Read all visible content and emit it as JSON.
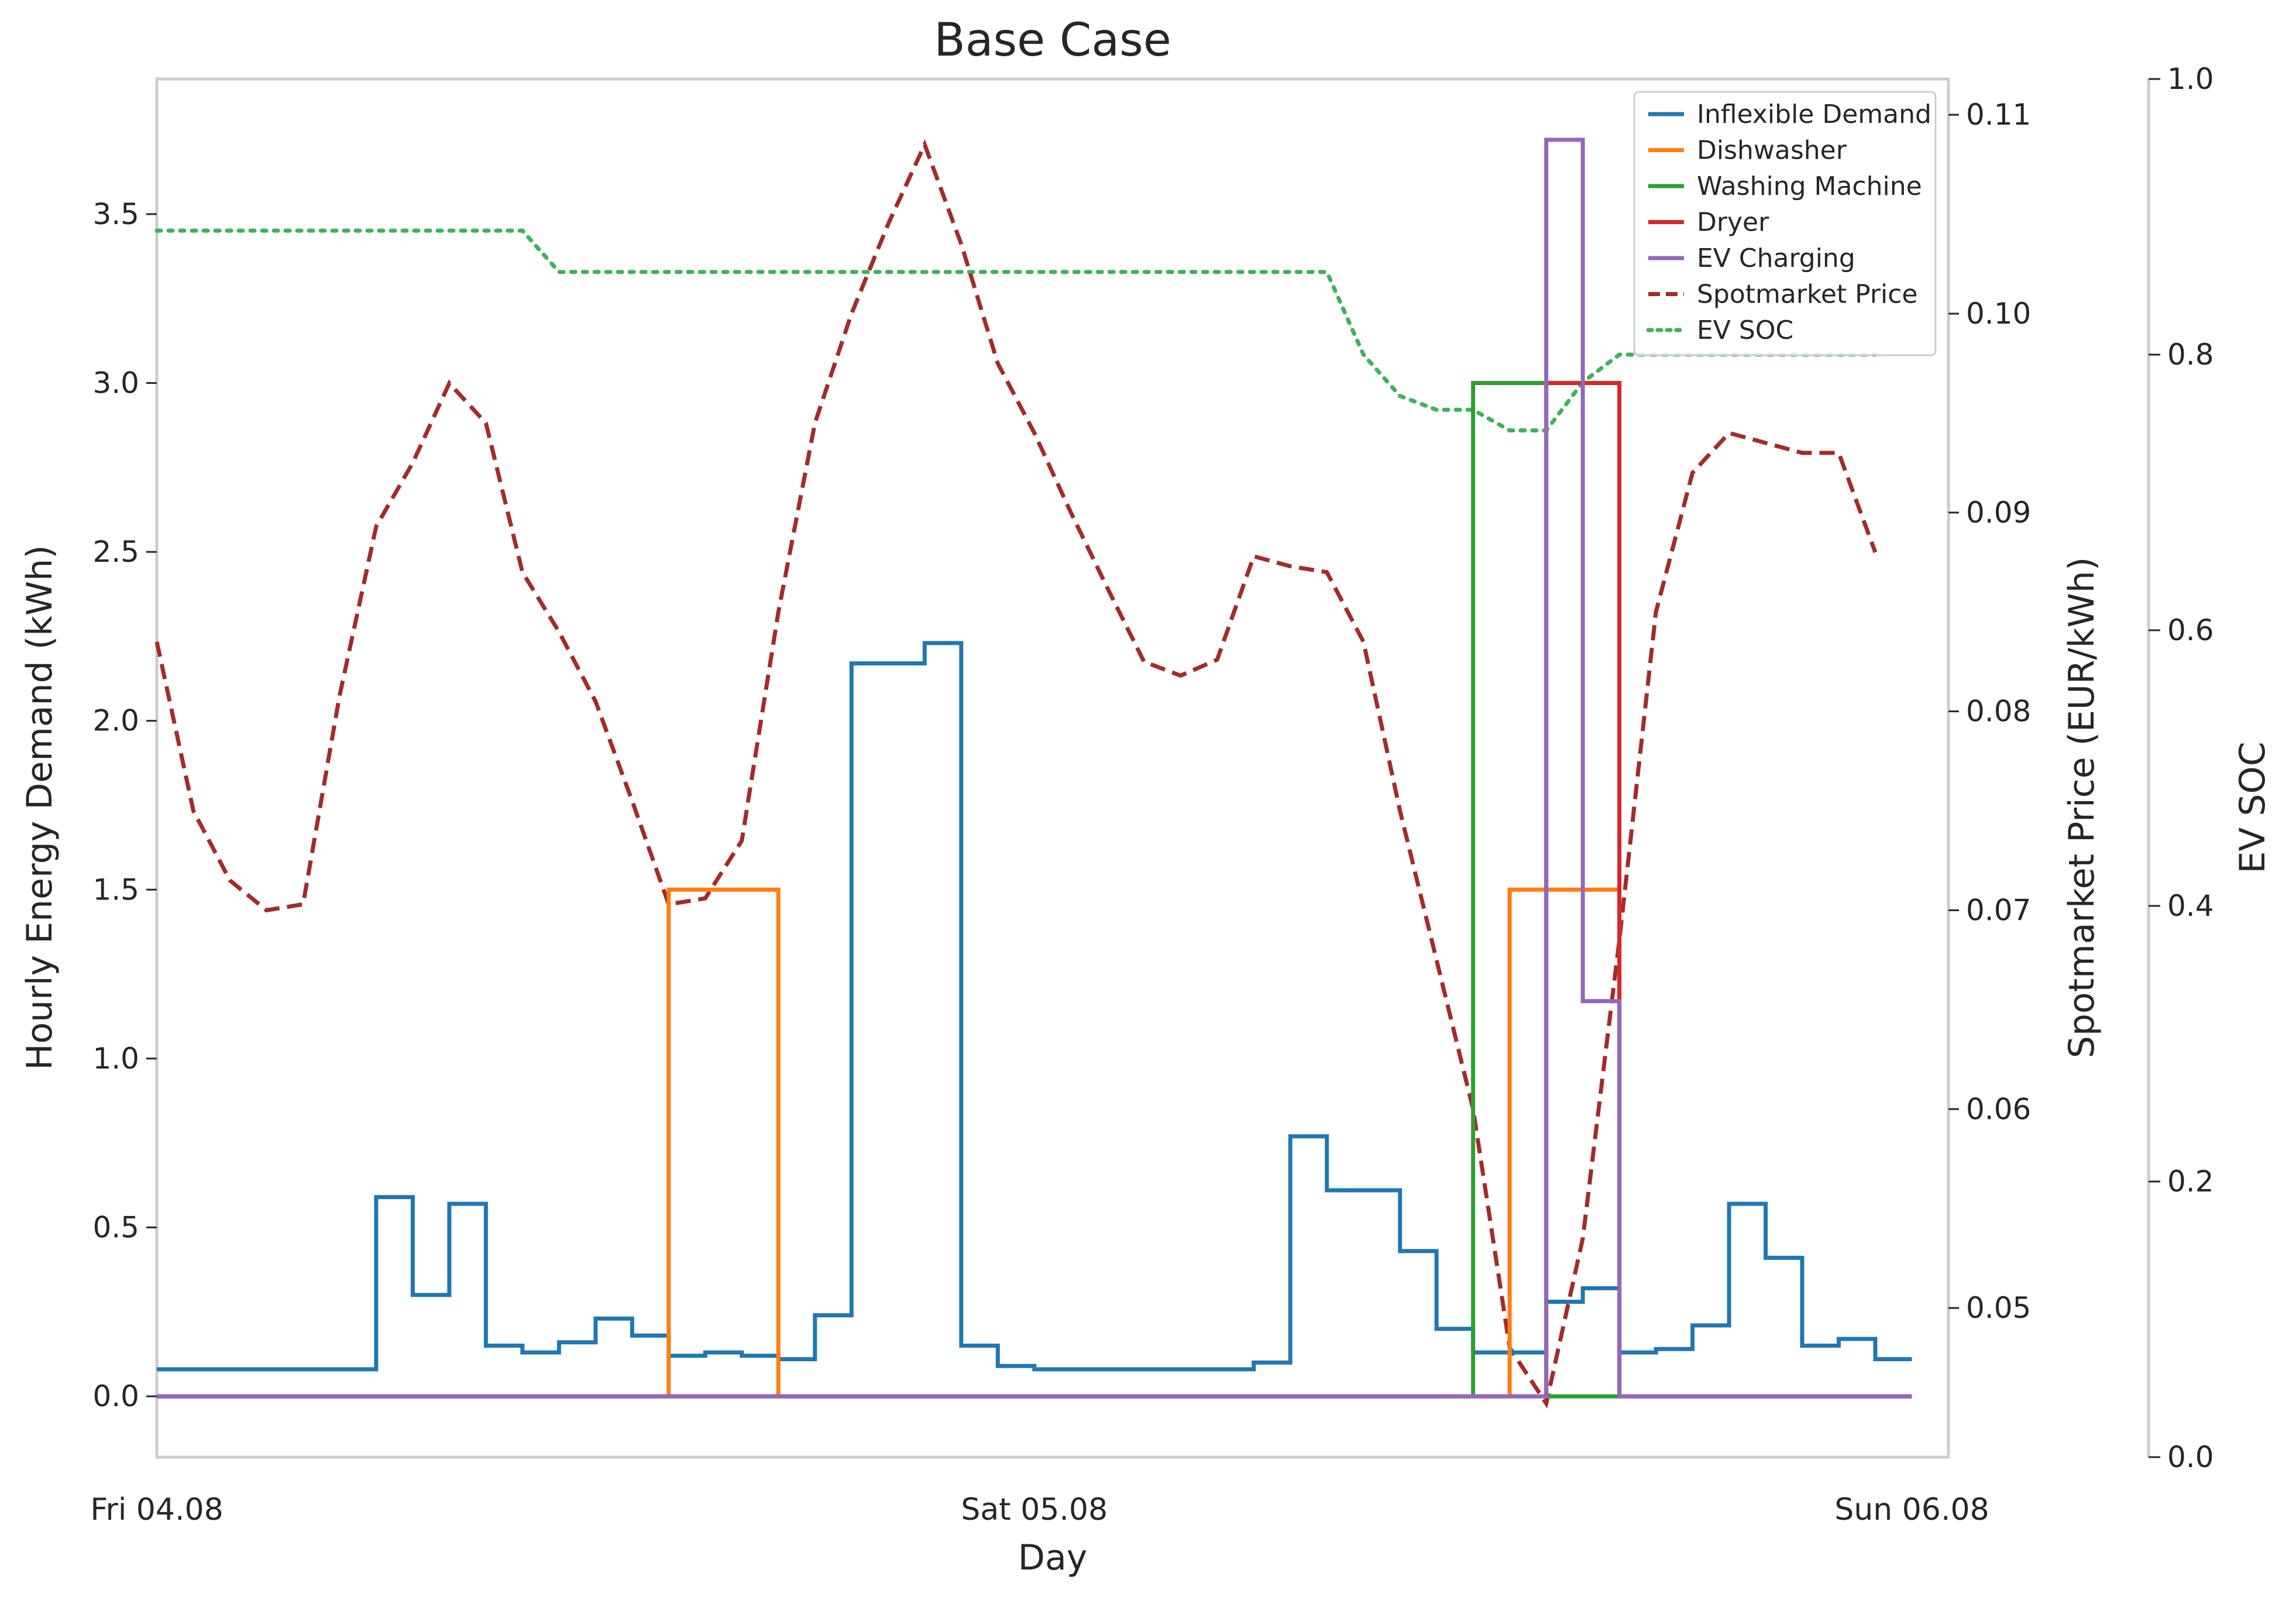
{
  "chart_data": {
    "type": "line",
    "title": "Base Case",
    "xlabel": "Day",
    "ylabel": "Hourly Energy Demand (kWh)",
    "y2label": "Spotmarket Price (EUR/kWh)",
    "y3label": "EV SOC",
    "x_ticks": [
      {
        "hour": 0,
        "label": "Fri 04.08"
      },
      {
        "hour": 24,
        "label": "Sat 05.08"
      },
      {
        "hour": 48,
        "label": "Sun 06.08"
      }
    ],
    "x_range_hours": [
      0,
      49
    ],
    "ylim": [
      -0.18,
      3.9
    ],
    "y_ticks": [
      0.0,
      0.5,
      1.0,
      1.5,
      2.0,
      2.5,
      3.0,
      3.5
    ],
    "y2lim": [
      0.0425,
      0.1118
    ],
    "y2_ticks": [
      0.05,
      0.06,
      0.07,
      0.08,
      0.09,
      0.1,
      0.11
    ],
    "y3lim": [
      0.0,
      1.0
    ],
    "y3_ticks": [
      0.0,
      0.2,
      0.4,
      0.6,
      0.8,
      1.0
    ],
    "grid": false,
    "legend": {
      "placement": "top-right",
      "entries": [
        "Inflexible Demand",
        "Dishwasher",
        "Washing Machine",
        "Dryer",
        "EV Charging",
        "Spotmarket Price",
        "EV SOC"
      ]
    },
    "colors": {
      "inflexible": "#1f77b4",
      "dishwasher": "#ff7f0e",
      "washing": "#2ca02c",
      "dryer": "#d62728",
      "ev_charging": "#9467bd",
      "price": "#a52a2a",
      "soc": "#3cb35a"
    },
    "series": [
      {
        "name": "Inflexible Demand",
        "axis": "left",
        "style": "step",
        "values": [
          0.08,
          0.08,
          0.08,
          0.08,
          0.08,
          0.08,
          0.59,
          0.3,
          0.57,
          0.15,
          0.13,
          0.16,
          0.23,
          0.18,
          0.12,
          0.13,
          0.12,
          0.11,
          0.24,
          2.17,
          2.17,
          2.23,
          0.15,
          0.09,
          0.08,
          0.08,
          0.08,
          0.08,
          0.08,
          0.08,
          0.1,
          0.77,
          0.61,
          0.61,
          0.43,
          0.2,
          0.13,
          0.13,
          0.28,
          0.32,
          0.13,
          0.14,
          0.21,
          0.57,
          0.41,
          0.15,
          0.17,
          0.11
        ]
      },
      {
        "name": "Dishwasher",
        "axis": "left",
        "style": "step",
        "values": [
          0,
          0,
          0,
          0,
          0,
          0,
          0,
          0,
          0,
          0,
          0,
          0,
          0,
          0,
          1.5,
          1.5,
          1.5,
          0,
          0,
          0,
          0,
          0,
          0,
          0,
          0,
          0,
          0,
          0,
          0,
          0,
          0,
          0,
          0,
          0,
          0,
          0,
          0,
          1.5,
          1.5,
          1.5,
          0,
          0,
          0,
          0,
          0,
          0,
          0,
          0
        ]
      },
      {
        "name": "Washing Machine",
        "axis": "left",
        "style": "step",
        "values": [
          0,
          0,
          0,
          0,
          0,
          0,
          0,
          0,
          0,
          0,
          0,
          0,
          0,
          0,
          0,
          0,
          0,
          0,
          0,
          0,
          0,
          0,
          0,
          0,
          0,
          0,
          0,
          0,
          0,
          0,
          0,
          0,
          0,
          0,
          0,
          0,
          3.0,
          3.0,
          0,
          0,
          0,
          0,
          0,
          0,
          0,
          0,
          0,
          0
        ]
      },
      {
        "name": "Dryer",
        "axis": "left",
        "style": "step",
        "values": [
          0,
          0,
          0,
          0,
          0,
          0,
          0,
          0,
          0,
          0,
          0,
          0,
          0,
          0,
          0,
          0,
          0,
          0,
          0,
          0,
          0,
          0,
          0,
          0,
          0,
          0,
          0,
          0,
          0,
          0,
          0,
          0,
          0,
          0,
          0,
          0,
          0,
          0,
          3.0,
          3.0,
          0,
          0,
          0,
          0,
          0,
          0,
          0,
          0
        ]
      },
      {
        "name": "EV Charging",
        "axis": "left",
        "style": "step",
        "values": [
          0,
          0,
          0,
          0,
          0,
          0,
          0,
          0,
          0,
          0,
          0,
          0,
          0,
          0,
          0,
          0,
          0,
          0,
          0,
          0,
          0,
          0,
          0,
          0,
          0,
          0,
          0,
          0,
          0,
          0,
          0,
          0,
          0,
          0,
          0,
          0,
          0,
          0,
          3.72,
          1.17,
          0,
          0,
          0,
          0,
          0,
          0,
          0,
          0
        ]
      },
      {
        "name": "Spotmarket Price",
        "axis": "right",
        "style": "dashed",
        "values": [
          0.0835,
          0.075,
          0.0715,
          0.07,
          0.0703,
          0.0808,
          0.0893,
          0.0925,
          0.0965,
          0.0945,
          0.087,
          0.084,
          0.0805,
          0.0755,
          0.0703,
          0.0706,
          0.0735,
          0.085,
          0.0945,
          0.1,
          0.1045,
          0.1085,
          0.1035,
          0.0975,
          0.094,
          0.09,
          0.0862,
          0.0825,
          0.0818,
          0.0826,
          0.0878,
          0.0873,
          0.087,
          0.0835,
          0.075,
          0.0675,
          0.06,
          0.048,
          0.0452,
          0.0535,
          0.0685,
          0.085,
          0.092,
          0.094,
          0.0935,
          0.093,
          0.093,
          0.088
        ]
      },
      {
        "name": "EV SOC",
        "axis": "far-right",
        "style": "dotted",
        "values": [
          0.89,
          0.89,
          0.89,
          0.89,
          0.89,
          0.89,
          0.89,
          0.89,
          0.89,
          0.89,
          0.89,
          0.86,
          0.86,
          0.86,
          0.86,
          0.86,
          0.86,
          0.86,
          0.86,
          0.86,
          0.86,
          0.86,
          0.86,
          0.86,
          0.86,
          0.86,
          0.86,
          0.86,
          0.86,
          0.86,
          0.86,
          0.86,
          0.86,
          0.8,
          0.77,
          0.76,
          0.76,
          0.745,
          0.745,
          0.78,
          0.8,
          0.8,
          0.8,
          0.8,
          0.8,
          0.8,
          0.8,
          0.8
        ]
      }
    ]
  }
}
